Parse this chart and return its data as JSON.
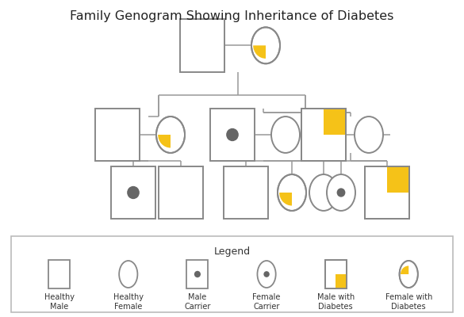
{
  "title": "Family Genogram Showing Inheritance of Diabetes",
  "bg_color": "#ffffff",
  "outer_bg": "#f0f0f0",
  "border_color": "#bbbbbb",
  "line_color": "#999999",
  "shape_edge_color": "#888888",
  "dot_color": "#666666",
  "gold_color": "#F5C218",
  "title_fontsize": 11.5,
  "legend_fontsize": 7.0,
  "legend_labels": [
    "Healthy\nMale",
    "Healthy\nFemale",
    "Male\nCarrier",
    "Female\nCarrier",
    "Male with\nDiabetes",
    "Female with\nDiabetes"
  ]
}
